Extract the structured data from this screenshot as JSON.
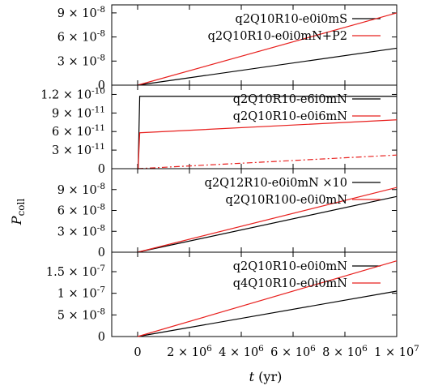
{
  "chart_data": {
    "type": "line",
    "xlabel": "t (yr)",
    "ylabel": "P_coll",
    "xlim": [
      -1000000,
      10000000
    ],
    "x_ticks": [
      {
        "v": 0,
        "label": "0"
      },
      {
        "v": 2000000,
        "label": "2 × 10^6"
      },
      {
        "v": 4000000,
        "label": "4 × 10^6"
      },
      {
        "v": 6000000,
        "label": "6 × 10^6"
      },
      {
        "v": 8000000,
        "label": "8 × 10^6"
      },
      {
        "v": 10000000,
        "label": "1 × 10^7"
      }
    ],
    "panels": [
      {
        "ylim": [
          0,
          1e-07
        ],
        "y_ticks": [
          {
            "v": 0,
            "label": "0"
          },
          {
            "v": 3e-08,
            "label": "3 × 10^-8"
          },
          {
            "v": 6e-08,
            "label": "6 × 10^-8"
          },
          {
            "v": 9e-08,
            "label": "9 × 10^-8"
          }
        ],
        "series": [
          {
            "name": "q2Q10R10-e0i0mS",
            "color": "#000000",
            "dash": "solid",
            "x": [
              0,
              10000000
            ],
            "y": [
              0,
              4.6e-08
            ]
          },
          {
            "name": "q2Q10R10-e0i0mN+P2",
            "color": "#e8201e",
            "dash": "solid",
            "x": [
              0,
              10000000
            ],
            "y": [
              0,
              9e-08
            ]
          }
        ]
      },
      {
        "ylim": [
          0,
          1.35e-10
        ],
        "y_ticks": [
          {
            "v": 0,
            "label": "0"
          },
          {
            "v": 3e-11,
            "label": "3 × 10^-11"
          },
          {
            "v": 6e-11,
            "label": "6 × 10^-11"
          },
          {
            "v": 9e-11,
            "label": "9 × 10^-11"
          },
          {
            "v": 1.2e-10,
            "label": "1.2 × 10^-10"
          }
        ],
        "series": [
          {
            "name": "q2Q10R10-e6i0mN",
            "color": "#000000",
            "dash": "solid",
            "x": [
              0,
              20000,
              80000,
              10000000
            ],
            "y": [
              0,
              0,
              1.17e-10,
              1.17e-10
            ]
          },
          {
            "name": "q2Q10R10-e0i6mN",
            "color": "#e8201e",
            "dash": "solid",
            "x": [
              0,
              20000,
              80000,
              10000000
            ],
            "y": [
              0,
              0,
              5.8e-11,
              7.9e-11
            ]
          },
          {
            "name": "",
            "color": "#e8201e",
            "dash": "dashdot",
            "x": [
              0,
              10000000
            ],
            "y": [
              0,
              2.2e-11
            ]
          }
        ]
      },
      {
        "ylim": [
          0,
          1.2e-07
        ],
        "y_ticks": [
          {
            "v": 0,
            "label": "0"
          },
          {
            "v": 3e-08,
            "label": "3 × 10^-8"
          },
          {
            "v": 6e-08,
            "label": "6 × 10^-8"
          },
          {
            "v": 9e-08,
            "label": "9 × 10^-8"
          }
        ],
        "series": [
          {
            "name": "q2Q12R10-e0i0mN ×10",
            "color": "#000000",
            "dash": "solid",
            "x": [
              0,
              10000000
            ],
            "y": [
              0,
              8e-08
            ]
          },
          {
            "name": "q2Q10R100-e0i0mN",
            "color": "#e8201e",
            "dash": "solid",
            "x": [
              0,
              10000000
            ],
            "y": [
              0,
              9.3e-08
            ]
          }
        ]
      },
      {
        "ylim": [
          0,
          1.95e-07
        ],
        "y_ticks": [
          {
            "v": 0,
            "label": "0"
          },
          {
            "v": 5e-08,
            "label": "5 × 10^-8"
          },
          {
            "v": 1e-07,
            "label": "1 × 10^-7"
          },
          {
            "v": 1.5e-07,
            "label": "1.5 × 10^-7"
          }
        ],
        "series": [
          {
            "name": "q2Q10R10-e0i0mN",
            "color": "#000000",
            "dash": "solid",
            "x": [
              0,
              10000000
            ],
            "y": [
              0,
              1.05e-07
            ]
          },
          {
            "name": "q4Q10R10-e0i0mN",
            "color": "#e8201e",
            "dash": "solid",
            "x": [
              0,
              10000000
            ],
            "y": [
              0,
              1.75e-07
            ]
          }
        ]
      }
    ]
  }
}
